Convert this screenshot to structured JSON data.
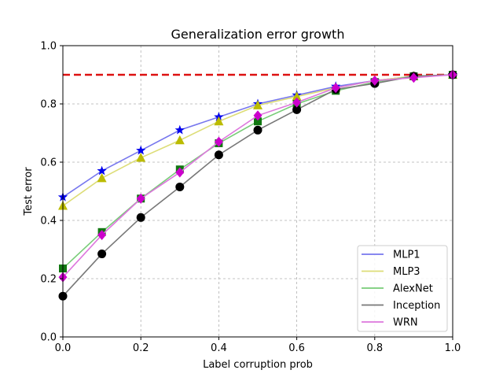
{
  "chart_data": {
    "type": "line",
    "title": "Generalization error growth",
    "xlabel": "Label corruption prob",
    "ylabel": "Test error",
    "xlim": [
      0.0,
      1.0
    ],
    "ylim": [
      0.0,
      1.0
    ],
    "x_ticks": [
      "0.0",
      "0.2",
      "0.4",
      "0.6",
      "0.8",
      "1.0"
    ],
    "y_ticks": [
      "0.0",
      "0.2",
      "0.4",
      "0.6",
      "0.8",
      "1.0"
    ],
    "grid": true,
    "legend_position": "bottom-right",
    "x": [
      0.0,
      0.1,
      0.2,
      0.3,
      0.4,
      0.5,
      0.6,
      0.7,
      0.8,
      0.9,
      1.0
    ],
    "reference_line": {
      "y": 0.9,
      "color": "#dd1111",
      "style": "dashed"
    },
    "series": [
      {
        "name": "MLP1",
        "line_color": "#7777ee",
        "marker": "star",
        "marker_color": "#0000ee",
        "values": [
          0.48,
          0.57,
          0.64,
          0.71,
          0.755,
          0.8,
          0.83,
          0.86,
          0.88,
          0.895,
          0.9
        ]
      },
      {
        "name": "MLP3",
        "line_color": "#dddd77",
        "marker": "triangle",
        "marker_color": "#bbbb00",
        "values": [
          0.45,
          0.545,
          0.615,
          0.675,
          0.74,
          0.795,
          0.825,
          0.855,
          0.88,
          0.895,
          0.9
        ]
      },
      {
        "name": "AlexNet",
        "line_color": "#77cc77",
        "marker": "square",
        "marker_color": "#117711",
        "values": [
          0.235,
          0.36,
          0.475,
          0.575,
          0.665,
          0.74,
          0.8,
          0.845,
          0.875,
          0.895,
          0.9
        ]
      },
      {
        "name": "Inception",
        "line_color": "#777777",
        "marker": "circle",
        "marker_color": "#000000",
        "values": [
          0.14,
          0.285,
          0.41,
          0.515,
          0.625,
          0.71,
          0.78,
          0.85,
          0.87,
          0.895,
          0.9
        ]
      },
      {
        "name": "WRN",
        "line_color": "#dd77dd",
        "marker": "diamond",
        "marker_color": "#cc00cc",
        "values": [
          0.205,
          0.35,
          0.475,
          0.565,
          0.67,
          0.76,
          0.805,
          0.855,
          0.88,
          0.89,
          0.9
        ]
      }
    ]
  }
}
